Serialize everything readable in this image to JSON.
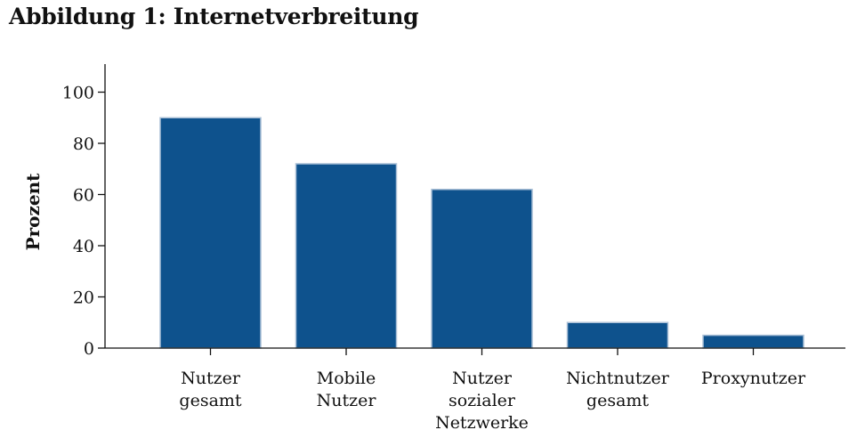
{
  "chart_data": {
    "type": "bar",
    "title": "Abbildung 1: Internetverbreitung",
    "ylabel": "Prozent",
    "xlabel": "",
    "categories": [
      [
        "Nutzer",
        "gesamt"
      ],
      [
        "Mobile",
        "Nutzer"
      ],
      [
        "Nutzer",
        "sozialer",
        "Netzwerke"
      ],
      [
        "Nichtnutzer",
        "gesamt"
      ],
      [
        "Proxynutzer"
      ]
    ],
    "values": [
      90,
      72,
      62,
      10,
      5
    ],
    "ylim": [
      0,
      110
    ],
    "yticks": [
      0,
      20,
      40,
      60,
      80,
      100
    ],
    "grid": false,
    "legend": "none",
    "bar_color": "#0e528d",
    "bar_edge_color": "#a9bfd6"
  }
}
